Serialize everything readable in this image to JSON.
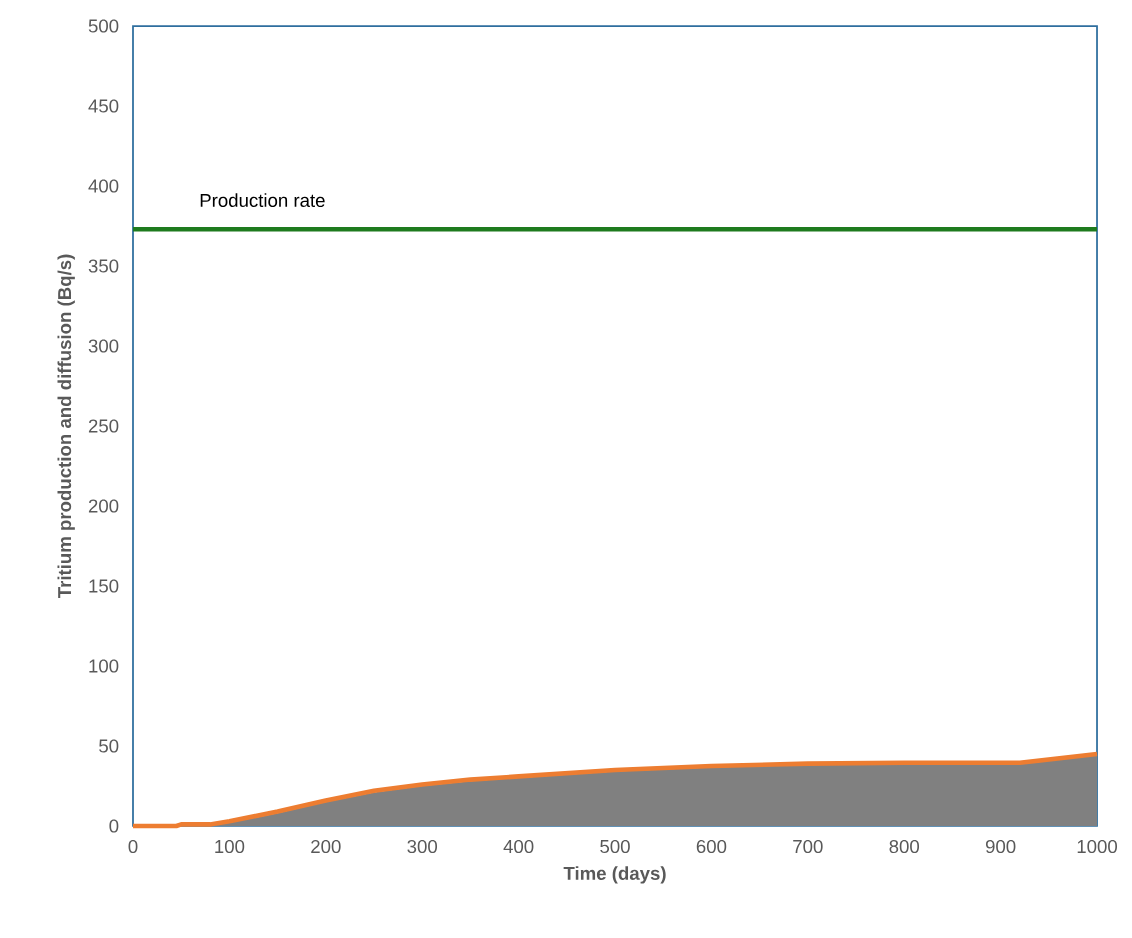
{
  "chart_data": {
    "type": "area",
    "xlabel": "Time (days)",
    "ylabel": "Tritium production and diffusion (Bq/s)",
    "xlim": [
      0,
      1000
    ],
    "ylim": [
      0,
      500
    ],
    "xticks": [
      0,
      100,
      200,
      300,
      400,
      500,
      600,
      700,
      800,
      900,
      1000
    ],
    "yticks": [
      0,
      50,
      100,
      150,
      200,
      250,
      300,
      350,
      400,
      450,
      500
    ],
    "series": [
      {
        "color": "#808080",
        "x": [
          80,
          100,
          150,
          200,
          250,
          300,
          350,
          400,
          500,
          600,
          700,
          800,
          920,
          1000
        ],
        "values": [
          0,
          2,
          8,
          15,
          21,
          25,
          28,
          30,
          34,
          36.5,
          38,
          39,
          39,
          44
        ]
      },
      {
        "type": "line",
        "color": "#ed7d31",
        "x": [
          0,
          45,
          50,
          80,
          100,
          150,
          200,
          250,
          300,
          350,
          400,
          500,
          600,
          700,
          800,
          920,
          1000
        ],
        "values": [
          0,
          0,
          1,
          1,
          3,
          9,
          16,
          22,
          26,
          29,
          31,
          35,
          37.5,
          39,
          39.5,
          39.5,
          45
        ]
      }
    ],
    "ref_lines": [
      {
        "axis": "y",
        "value": 373,
        "label": "Production rate",
        "color": "#1e7b1e"
      }
    ]
  }
}
